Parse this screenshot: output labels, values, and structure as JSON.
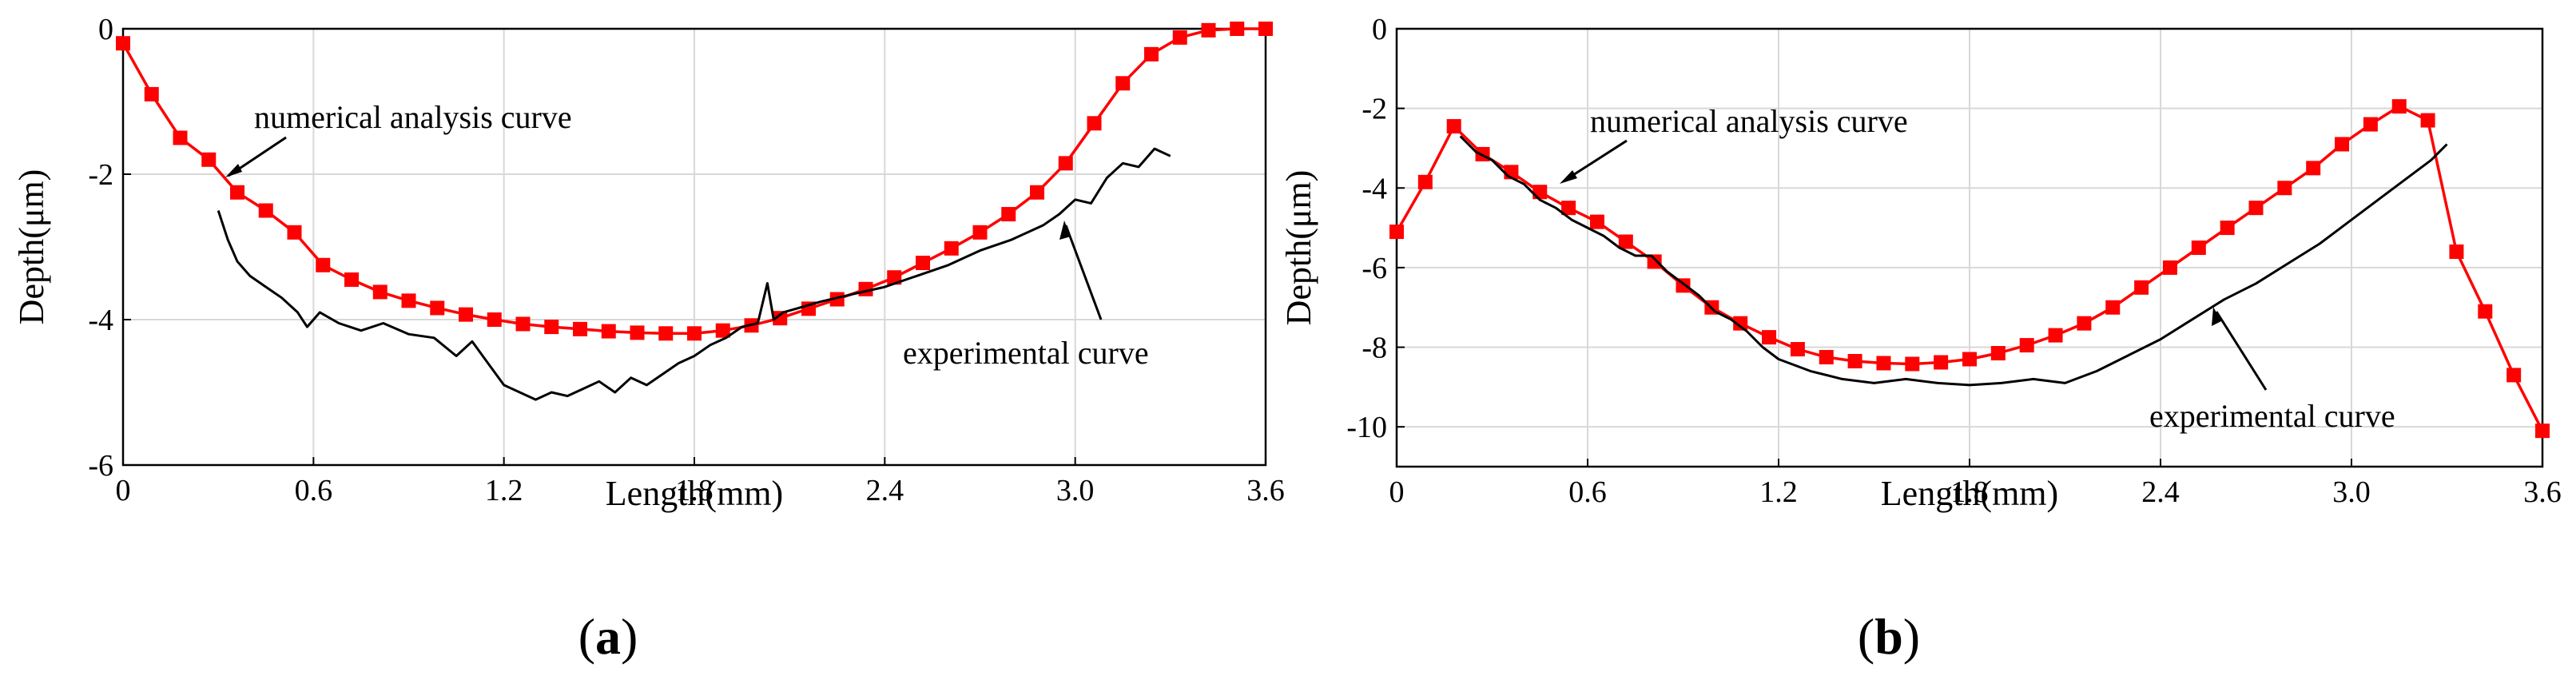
{
  "chart_data": [
    {
      "id": "a",
      "type": "line",
      "panel_label": "a",
      "xlabel": "Length(mm)",
      "ylabel": "Depth(μm)",
      "xlim": [
        0,
        3.6
      ],
      "ylim": [
        -6,
        0
      ],
      "xticks": [
        "0",
        "0.6",
        "1.2",
        "1.8",
        "2.4",
        "3.0",
        "3.6"
      ],
      "xtick_values": [
        0,
        0.6,
        1.2,
        1.8,
        2.4,
        3.0,
        3.6
      ],
      "yticks": [
        "0",
        "-2",
        "-4",
        "-6"
      ],
      "ytick_values": [
        0,
        -2,
        -4,
        -6
      ],
      "grid": true,
      "series": [
        {
          "name": "numerical analysis curve",
          "color": "#ff0000",
          "marker": "square",
          "x": [
            0,
            0.09,
            0.18,
            0.27,
            0.36,
            0.45,
            0.54,
            0.63,
            0.72,
            0.81,
            0.9,
            0.99,
            1.08,
            1.17,
            1.26,
            1.35,
            1.44,
            1.53,
            1.62,
            1.71,
            1.8,
            1.89,
            1.98,
            2.07,
            2.16,
            2.25,
            2.34,
            2.43,
            2.52,
            2.61,
            2.7,
            2.79,
            2.88,
            2.97,
            3.06,
            3.15,
            3.24,
            3.33,
            3.42,
            3.51,
            3.6
          ],
          "y": [
            -0.2,
            -0.9,
            -1.5,
            -1.8,
            -2.25,
            -2.5,
            -2.8,
            -3.25,
            -3.45,
            -3.62,
            -3.74,
            -3.84,
            -3.93,
            -4.0,
            -4.06,
            -4.1,
            -4.13,
            -4.16,
            -4.18,
            -4.19,
            -4.19,
            -4.15,
            -4.08,
            -3.98,
            -3.85,
            -3.72,
            -3.58,
            -3.42,
            -3.22,
            -3.02,
            -2.8,
            -2.55,
            -2.25,
            -1.85,
            -1.3,
            -0.75,
            -0.35,
            -0.12,
            -0.02,
            0,
            0
          ]
        },
        {
          "name": "experimental curve",
          "color": "#000000",
          "marker": "none",
          "x": [
            0.3,
            0.33,
            0.36,
            0.4,
            0.45,
            0.5,
            0.55,
            0.58,
            0.62,
            0.68,
            0.75,
            0.82,
            0.9,
            0.98,
            1.05,
            1.1,
            1.15,
            1.2,
            1.25,
            1.3,
            1.35,
            1.4,
            1.45,
            1.5,
            1.55,
            1.6,
            1.65,
            1.7,
            1.75,
            1.8,
            1.85,
            1.9,
            1.95,
            2.0,
            2.03,
            2.05,
            2.08,
            2.12,
            2.2,
            2.3,
            2.4,
            2.5,
            2.6,
            2.7,
            2.8,
            2.9,
            2.95,
            3.0,
            3.05,
            3.1,
            3.15,
            3.2,
            3.25,
            3.3
          ],
          "y": [
            -2.5,
            -2.9,
            -3.2,
            -3.4,
            -3.55,
            -3.7,
            -3.9,
            -4.1,
            -3.9,
            -4.05,
            -4.15,
            -4.05,
            -4.2,
            -4.25,
            -4.5,
            -4.3,
            -4.6,
            -4.9,
            -5.0,
            -5.1,
            -5.0,
            -5.05,
            -4.95,
            -4.85,
            -5.0,
            -4.8,
            -4.9,
            -4.75,
            -4.6,
            -4.5,
            -4.35,
            -4.25,
            -4.1,
            -4.05,
            -3.5,
            -4.0,
            -3.9,
            -3.85,
            -3.75,
            -3.65,
            -3.55,
            -3.4,
            -3.25,
            -3.05,
            -2.9,
            -2.7,
            -2.55,
            -2.35,
            -2.4,
            -2.05,
            -1.85,
            -1.9,
            -1.65,
            -1.75
          ]
        }
      ],
      "annotations": [
        {
          "text": "numerical analysis curve",
          "target_x": 0.32,
          "target_y": -2.1
        },
        {
          "text": "experimental curve",
          "target_x": 2.97,
          "target_y": -2.7
        }
      ]
    },
    {
      "id": "b",
      "type": "line",
      "panel_label": "b",
      "xlabel": "Length(mm)",
      "ylabel": "Depth(μm)",
      "xlim": [
        0,
        3.6
      ],
      "ylim": [
        -11,
        0
      ],
      "xticks": [
        "0",
        "0.6",
        "1.2",
        "1.8",
        "2.4",
        "3.0",
        "3.6"
      ],
      "xtick_values": [
        0,
        0.6,
        1.2,
        1.8,
        2.4,
        3.0,
        3.6
      ],
      "yticks": [
        "0",
        "-2",
        "-4",
        "-6",
        "-8",
        "-10"
      ],
      "ytick_values": [
        0,
        -2,
        -4,
        -6,
        -8,
        -10
      ],
      "grid": true,
      "series": [
        {
          "name": "numerical analysis curve",
          "color": "#ff0000",
          "marker": "square",
          "x": [
            0,
            0.09,
            0.18,
            0.27,
            0.36,
            0.45,
            0.54,
            0.63,
            0.72,
            0.81,
            0.9,
            0.99,
            1.08,
            1.17,
            1.26,
            1.35,
            1.44,
            1.53,
            1.62,
            1.71,
            1.8,
            1.89,
            1.98,
            2.07,
            2.16,
            2.25,
            2.34,
            2.43,
            2.52,
            2.61,
            2.7,
            2.79,
            2.88,
            2.97,
            3.06,
            3.15,
            3.24,
            3.33,
            3.42,
            3.51,
            3.6
          ],
          "y": [
            -5.1,
            -3.85,
            -2.45,
            -3.15,
            -3.6,
            -4.1,
            -4.5,
            -4.85,
            -5.35,
            -5.85,
            -6.45,
            -7.0,
            -7.4,
            -7.75,
            -8.05,
            -8.25,
            -8.35,
            -8.4,
            -8.42,
            -8.38,
            -8.3,
            -8.15,
            -7.95,
            -7.7,
            -7.4,
            -7.0,
            -6.5,
            -6.0,
            -5.5,
            -5.0,
            -4.5,
            -4.0,
            -3.5,
            -2.9,
            -2.4,
            -1.95,
            -2.3,
            -5.6,
            -7.1,
            -8.7,
            -10.1
          ]
        },
        {
          "name": "experimental curve",
          "color": "#000000",
          "marker": "none",
          "x": [
            0.2,
            0.25,
            0.3,
            0.35,
            0.4,
            0.45,
            0.5,
            0.55,
            0.6,
            0.65,
            0.7,
            0.75,
            0.8,
            0.85,
            0.9,
            0.95,
            1.0,
            1.05,
            1.1,
            1.15,
            1.2,
            1.3,
            1.4,
            1.5,
            1.6,
            1.7,
            1.8,
            1.9,
            2.0,
            2.1,
            2.2,
            2.3,
            2.4,
            2.5,
            2.6,
            2.7,
            2.8,
            2.9,
            3.0,
            3.1,
            3.2,
            3.25,
            3.3
          ],
          "y": [
            -2.7,
            -3.1,
            -3.3,
            -3.7,
            -3.9,
            -4.3,
            -4.5,
            -4.8,
            -5.0,
            -5.2,
            -5.5,
            -5.7,
            -5.7,
            -6.1,
            -6.4,
            -6.7,
            -7.1,
            -7.3,
            -7.6,
            -8.0,
            -8.3,
            -8.6,
            -8.8,
            -8.9,
            -8.8,
            -8.9,
            -8.95,
            -8.9,
            -8.8,
            -8.9,
            -8.6,
            -8.2,
            -7.8,
            -7.3,
            -6.8,
            -6.4,
            -5.9,
            -5.4,
            -4.8,
            -4.2,
            -3.6,
            -3.3,
            -2.9
          ]
        }
      ],
      "annotations": [
        {
          "text": "numerical analysis curve",
          "target_x": 0.45,
          "target_y": -3.9
        },
        {
          "text": "experimental curve",
          "target_x": 2.55,
          "target_y": -7.0
        }
      ]
    }
  ]
}
